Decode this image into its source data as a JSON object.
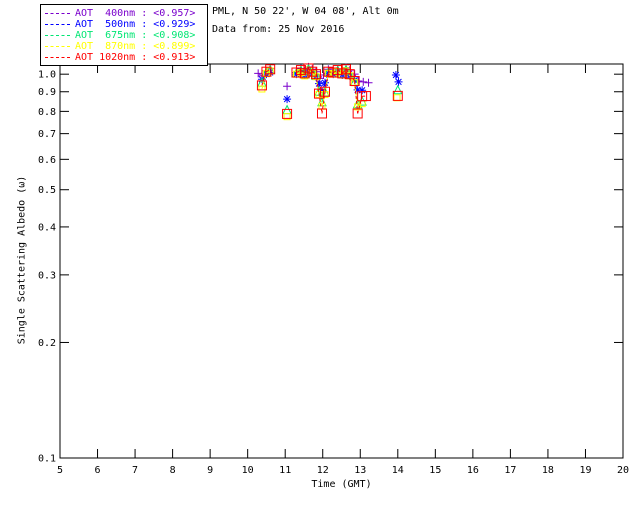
{
  "header": {
    "line1": "PML, N 50 22', W 04 08', Alt 0m",
    "line2": "Data from: 25 Nov 2016"
  },
  "legend": {
    "entries": [
      {
        "id": "400nm",
        "label": "AOT  400nm : <0.957>",
        "color": "#7A00CC"
      },
      {
        "id": "500nm",
        "label": "AOT  500nm : <0.929>",
        "color": "#0000FF"
      },
      {
        "id": "675nm",
        "label": "AOT  675nm : <0.908>",
        "color": "#00E673"
      },
      {
        "id": "870nm",
        "label": "AOT  870nm : <0.899>",
        "color": "#FFFF00"
      },
      {
        "id": "1020nm",
        "label": "AOT 1020nm : <0.913>",
        "color": "#FF0000"
      }
    ]
  },
  "chart_data": {
    "type": "scatter",
    "title": "",
    "xlabel": "Time (GMT)",
    "ylabel": "Single Scattering Albedo (ω)",
    "xlim": [
      5,
      20
    ],
    "ylim": [
      0.1,
      1.063
    ],
    "yscale": "log",
    "grid": false,
    "legend_position": "top-left",
    "x_ticks": [
      "5",
      "6",
      "7",
      "8",
      "9",
      "10",
      "11",
      "12",
      "13",
      "14",
      "15",
      "16",
      "17",
      "18",
      "19",
      "20"
    ],
    "y_ticks": [
      "1.0",
      "0.9",
      "0.8",
      "0.7",
      "0.6",
      "0.5",
      "0.4",
      "0.3",
      "0.2",
      "0.1"
    ],
    "series": [
      {
        "name": "AOT 400nm",
        "mean": "<0.957>",
        "color": "#7A00CC",
        "marker": "plus",
        "size": 4,
        "line_style": "dashed",
        "points": [
          [
            10.28,
            1.005
          ],
          [
            10.38,
            0.99
          ],
          [
            10.5,
            1.02
          ],
          [
            10.6,
            1.035
          ],
          [
            11.05,
            0.93
          ],
          [
            11.3,
            1.01
          ],
          [
            11.42,
            1.035
          ],
          [
            11.52,
            1.02
          ],
          [
            11.62,
            1.045
          ],
          [
            11.72,
            1.03
          ],
          [
            11.82,
            1.015
          ],
          [
            11.92,
            0.975
          ],
          [
            12.02,
            0.995
          ],
          [
            12.15,
            1.03
          ],
          [
            12.28,
            1.02
          ],
          [
            12.4,
            1.03
          ],
          [
            12.52,
            1.015
          ],
          [
            12.62,
            1.04
          ],
          [
            12.72,
            1.025
          ],
          [
            12.85,
            1.0
          ],
          [
            12.95,
            0.96
          ],
          [
            13.08,
            0.955
          ],
          [
            13.22,
            0.95
          ]
        ]
      },
      {
        "name": "AOT 500nm",
        "mean": "<0.929>",
        "color": "#0000FF",
        "marker": "asterisk",
        "size": 4,
        "line_style": "dashed",
        "points": [
          [
            10.38,
            0.97
          ],
          [
            10.5,
            1.0
          ],
          [
            10.6,
            1.01
          ],
          [
            11.05,
            0.861
          ],
          [
            11.3,
            1.0
          ],
          [
            11.42,
            1.015
          ],
          [
            11.52,
            0.995
          ],
          [
            11.62,
            1.02
          ],
          [
            11.72,
            1.005
          ],
          [
            11.82,
            0.985
          ],
          [
            11.9,
            0.945
          ],
          [
            11.98,
            0.9
          ],
          [
            12.06,
            0.95
          ],
          [
            12.15,
            1.005
          ],
          [
            12.28,
            1.0
          ],
          [
            12.4,
            1.01
          ],
          [
            12.52,
            0.995
          ],
          [
            12.62,
            1.015
          ],
          [
            12.72,
            0.99
          ],
          [
            12.85,
            0.965
          ],
          [
            12.93,
            0.91
          ],
          [
            13.05,
            0.908
          ],
          [
            13.95,
            0.995
          ],
          [
            14.02,
            0.955
          ]
        ]
      },
      {
        "name": "AOT 675nm",
        "mean": "<0.908>",
        "color": "#00E673",
        "marker": "triangle",
        "size": 4,
        "line_style": "dashed",
        "points": [
          [
            10.38,
            0.95
          ],
          [
            10.5,
            1.01
          ],
          [
            10.6,
            1.025
          ],
          [
            11.05,
            0.806
          ],
          [
            11.3,
            1.005
          ],
          [
            11.42,
            1.02
          ],
          [
            11.52,
            1.0
          ],
          [
            11.62,
            1.03
          ],
          [
            11.72,
            1.01
          ],
          [
            11.82,
            0.99
          ],
          [
            11.9,
            0.9
          ],
          [
            11.98,
            0.845
          ],
          [
            12.06,
            0.895
          ],
          [
            12.15,
            1.01
          ],
          [
            12.28,
            1.005
          ],
          [
            12.4,
            1.02
          ],
          [
            12.52,
            1.0
          ],
          [
            12.62,
            1.025
          ],
          [
            12.72,
            0.995
          ],
          [
            12.85,
            0.955
          ],
          [
            12.93,
            0.835
          ],
          [
            13.05,
            0.848
          ],
          [
            14.0,
            0.908
          ]
        ]
      },
      {
        "name": "AOT 870nm",
        "mean": "<0.899>",
        "color": "#FFFF00",
        "marker": "square",
        "size": 3,
        "line_style": "dashed",
        "points": [
          [
            10.38,
            0.915
          ],
          [
            10.5,
            1.005
          ],
          [
            10.6,
            1.02
          ],
          [
            11.05,
            0.775
          ],
          [
            11.3,
            1.0
          ],
          [
            11.42,
            1.01
          ],
          [
            11.52,
            0.99
          ],
          [
            11.62,
            1.025
          ],
          [
            11.72,
            1.005
          ],
          [
            11.82,
            0.985
          ],
          [
            11.9,
            0.885
          ],
          [
            11.98,
            0.825
          ],
          [
            12.06,
            0.885
          ],
          [
            12.15,
            1.005
          ],
          [
            12.28,
            1.0
          ],
          [
            12.4,
            1.015
          ],
          [
            12.52,
            0.995
          ],
          [
            12.62,
            1.02
          ],
          [
            12.72,
            0.99
          ],
          [
            12.85,
            0.95
          ],
          [
            12.93,
            0.822
          ],
          [
            13.05,
            0.838
          ],
          [
            13.98,
            0.868
          ]
        ]
      },
      {
        "name": "AOT 1020nm",
        "mean": "<0.913>",
        "color": "#FF0000",
        "marker": "square",
        "size": 4.5,
        "line_style": "dashed",
        "points": [
          [
            10.38,
            0.935
          ],
          [
            10.5,
            1.015
          ],
          [
            10.6,
            1.03
          ],
          [
            11.05,
            0.788
          ],
          [
            11.3,
            1.01
          ],
          [
            11.42,
            1.025
          ],
          [
            11.52,
            1.005
          ],
          [
            11.62,
            1.035
          ],
          [
            11.72,
            1.015
          ],
          [
            11.82,
            1.0
          ],
          [
            11.9,
            0.89
          ],
          [
            11.98,
            0.79
          ],
          [
            12.06,
            0.9
          ],
          [
            12.15,
            1.015
          ],
          [
            12.28,
            1.01
          ],
          [
            12.4,
            1.025
          ],
          [
            12.52,
            1.005
          ],
          [
            12.62,
            1.03
          ],
          [
            12.72,
            1.0
          ],
          [
            12.85,
            0.96
          ],
          [
            12.93,
            0.79
          ],
          [
            13.05,
            0.876
          ],
          [
            13.15,
            0.877
          ],
          [
            14.0,
            0.878
          ]
        ]
      }
    ]
  }
}
